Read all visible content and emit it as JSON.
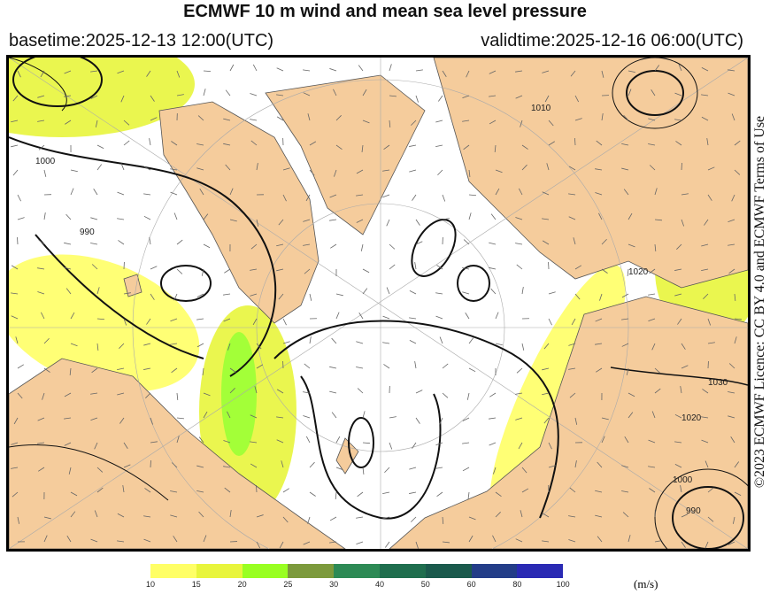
{
  "title": "ECMWF 10 m wind and mean sea level pressure",
  "basetime": "basetime:2025-12-13 12:00(UTC)",
  "validtime": "validtime:2025-12-16 06:00(UTC)",
  "credit": "©2023 ECMWF Licence: CC BY 4.0 and ECMWF Terms of Use",
  "colors": {
    "land": "#f5cc9c",
    "ocean": "#ffffff",
    "isobar": "#111111"
  },
  "colorbar": {
    "unit": "(m/s)",
    "ticks": [
      "10",
      "15",
      "20",
      "25",
      "30",
      "40",
      "50",
      "60",
      "80",
      "100"
    ],
    "colors": [
      "#ffff66",
      "#e8f53c",
      "#99ff22",
      "#7c9a3c",
      "#2d8a55",
      "#1f6e4e",
      "#1a5a4c",
      "#233d88",
      "#2a2ab4"
    ]
  },
  "isobar_labels": [
    "1000",
    "990",
    "1010",
    "1020",
    "1030",
    "1020",
    "1000",
    "990"
  ]
}
